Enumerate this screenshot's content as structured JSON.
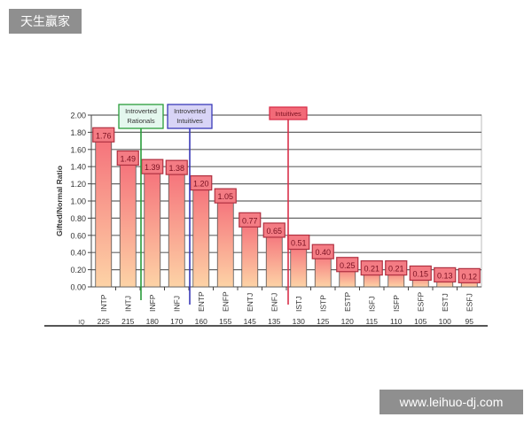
{
  "watermarks": {
    "top_left": "天生赢家",
    "bottom_right": "www.leihuo-dj.com"
  },
  "chart_data": {
    "type": "bar",
    "title": "",
    "ylabel": "Gifted/Normal Ratio",
    "ylim": [
      0,
      2
    ],
    "yticks": [
      "0.00",
      "0.20",
      "0.40",
      "0.60",
      "0.80",
      "1.00",
      "1.20",
      "1.40",
      "1.60",
      "1.80",
      "2.00"
    ],
    "grid": true,
    "categories": [
      "INTP",
      "INTJ",
      "INFP",
      "INFJ",
      "ENTP",
      "ENFP",
      "ENTJ",
      "ENFJ",
      "ISTJ",
      "ISTP",
      "ESTP",
      "ISFJ",
      "ISFP",
      "ESFP",
      "ESTJ",
      "ESFJ"
    ],
    "values": [
      1.76,
      1.49,
      1.39,
      1.38,
      1.2,
      1.05,
      0.77,
      0.65,
      0.51,
      0.4,
      0.25,
      0.21,
      0.21,
      0.15,
      0.13,
      0.12
    ],
    "data_labels": [
      "1.76",
      "1.49",
      "1.39",
      "1.38",
      "1.20",
      "1.05",
      "0.77",
      "0.65",
      "0.51",
      "0.40",
      "0.25",
      "0.21",
      "0.21",
      "0.15",
      "0.13",
      "0.12"
    ],
    "iq_label": "IQ",
    "iq_values": [
      "225",
      "215",
      "180",
      "170",
      "160",
      "155",
      "145",
      "135",
      "130",
      "125",
      "120",
      "115",
      "110",
      "105",
      "100",
      "95"
    ],
    "annotations": [
      {
        "lines": [
          "Introverted",
          "Rationals"
        ],
        "after_index": 1,
        "color": "#2a9d3a",
        "fill": "#e4f7ee"
      },
      {
        "lines": [
          "Introverted",
          "Intuitives"
        ],
        "after_index": 3,
        "color": "#3a3ab8",
        "fill": "#d8d4f6"
      },
      {
        "lines": [
          "Intuitives"
        ],
        "after_index": 7,
        "color": "#d8304a",
        "fill": "#f26a78"
      }
    ],
    "bar_colors": {
      "top": "#f5707a",
      "bottom": "#fdd3a6",
      "label_fill": "#f47c84",
      "label_border": "#b03040"
    }
  }
}
